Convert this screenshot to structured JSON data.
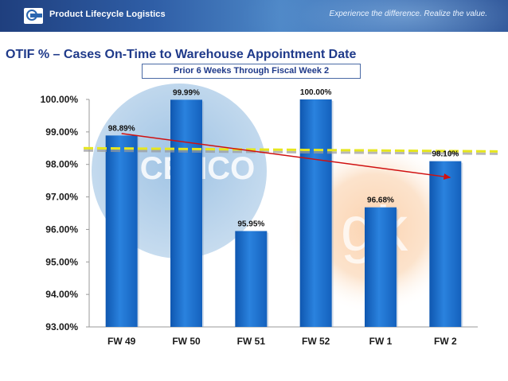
{
  "header": {
    "brand_title": "Product Lifecycle Logistics",
    "tagline": "Experience the difference. Realize the value."
  },
  "watermarks": {
    "cenco": "CENCO",
    "gk": "gk"
  },
  "colors": {
    "bar": "#1f6ec9",
    "trend": "#d01010",
    "target": "#e6e61e",
    "title": "#1f3a8a"
  },
  "chart_data": {
    "type": "bar",
    "title": "OTIF % – Cases On-Time to Warehouse Appointment Date",
    "subtitle": "Prior 6 Weeks Through Fiscal Week 2",
    "categories": [
      "FW 49",
      "FW 50",
      "FW 51",
      "FW 52",
      "FW 1",
      "FW 2"
    ],
    "values": [
      98.89,
      99.99,
      95.95,
      100.0,
      96.68,
      98.1
    ],
    "data_labels": [
      "98.89%",
      "99.99%",
      "95.95%",
      "100.00%",
      "96.68%",
      "98.10%"
    ],
    "ylim": [
      93.0,
      100.0
    ],
    "yticks": [
      100.0,
      99.0,
      98.0,
      97.0,
      96.0,
      95.0,
      94.0,
      93.0
    ],
    "ytick_labels": [
      "100.00%",
      "99.00%",
      "98.00%",
      "97.00%",
      "96.00%",
      "95.00%",
      "94.00%",
      "93.00%"
    ],
    "target_line": {
      "y_start": 98.5,
      "y_end": 98.4
    },
    "trend_line": {
      "from_category": "FW 49",
      "to_category": "FW 2",
      "y_start": 98.95,
      "y_end": 97.6
    },
    "xlabel": "",
    "ylabel": ""
  }
}
